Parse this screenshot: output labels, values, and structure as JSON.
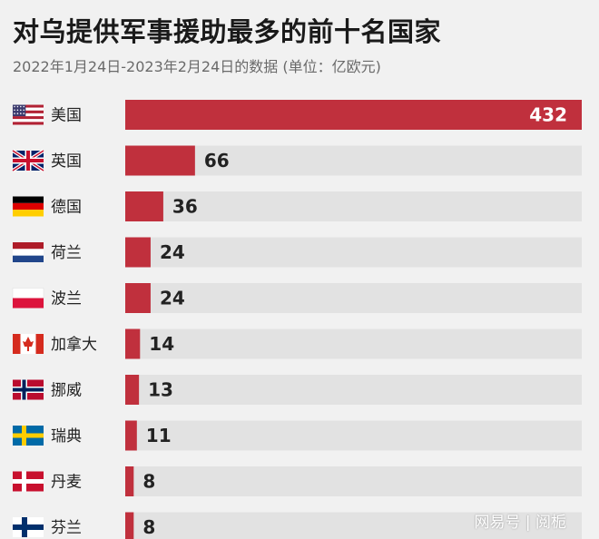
{
  "title": "对乌提供军事援助最多的前十名国家",
  "subtitle": "2022年1月24日-2023年2月24日的数据 (单位：亿欧元)",
  "watermark": "网易号 | 阅栀",
  "colors": {
    "bar": "#c0303d",
    "track": "#e2e2e2",
    "background": "#f1f1f1"
  },
  "chart_data": {
    "type": "bar",
    "orientation": "horizontal",
    "categories": [
      "美国",
      "英国",
      "德国",
      "荷兰",
      "波兰",
      "加拿大",
      "挪威",
      "瑞典",
      "丹麦",
      "芬兰"
    ],
    "values": [
      432,
      66,
      36,
      24,
      24,
      14,
      13,
      11,
      8,
      8
    ],
    "flags": [
      "us-flag-icon",
      "uk-flag-icon",
      "germany-flag-icon",
      "netherlands-flag-icon",
      "poland-flag-icon",
      "canada-flag-icon",
      "norway-flag-icon",
      "sweden-flag-icon",
      "denmark-flag-icon",
      "finland-flag-icon"
    ],
    "xlim": [
      0,
      432
    ],
    "grid": false,
    "legend": "none"
  }
}
